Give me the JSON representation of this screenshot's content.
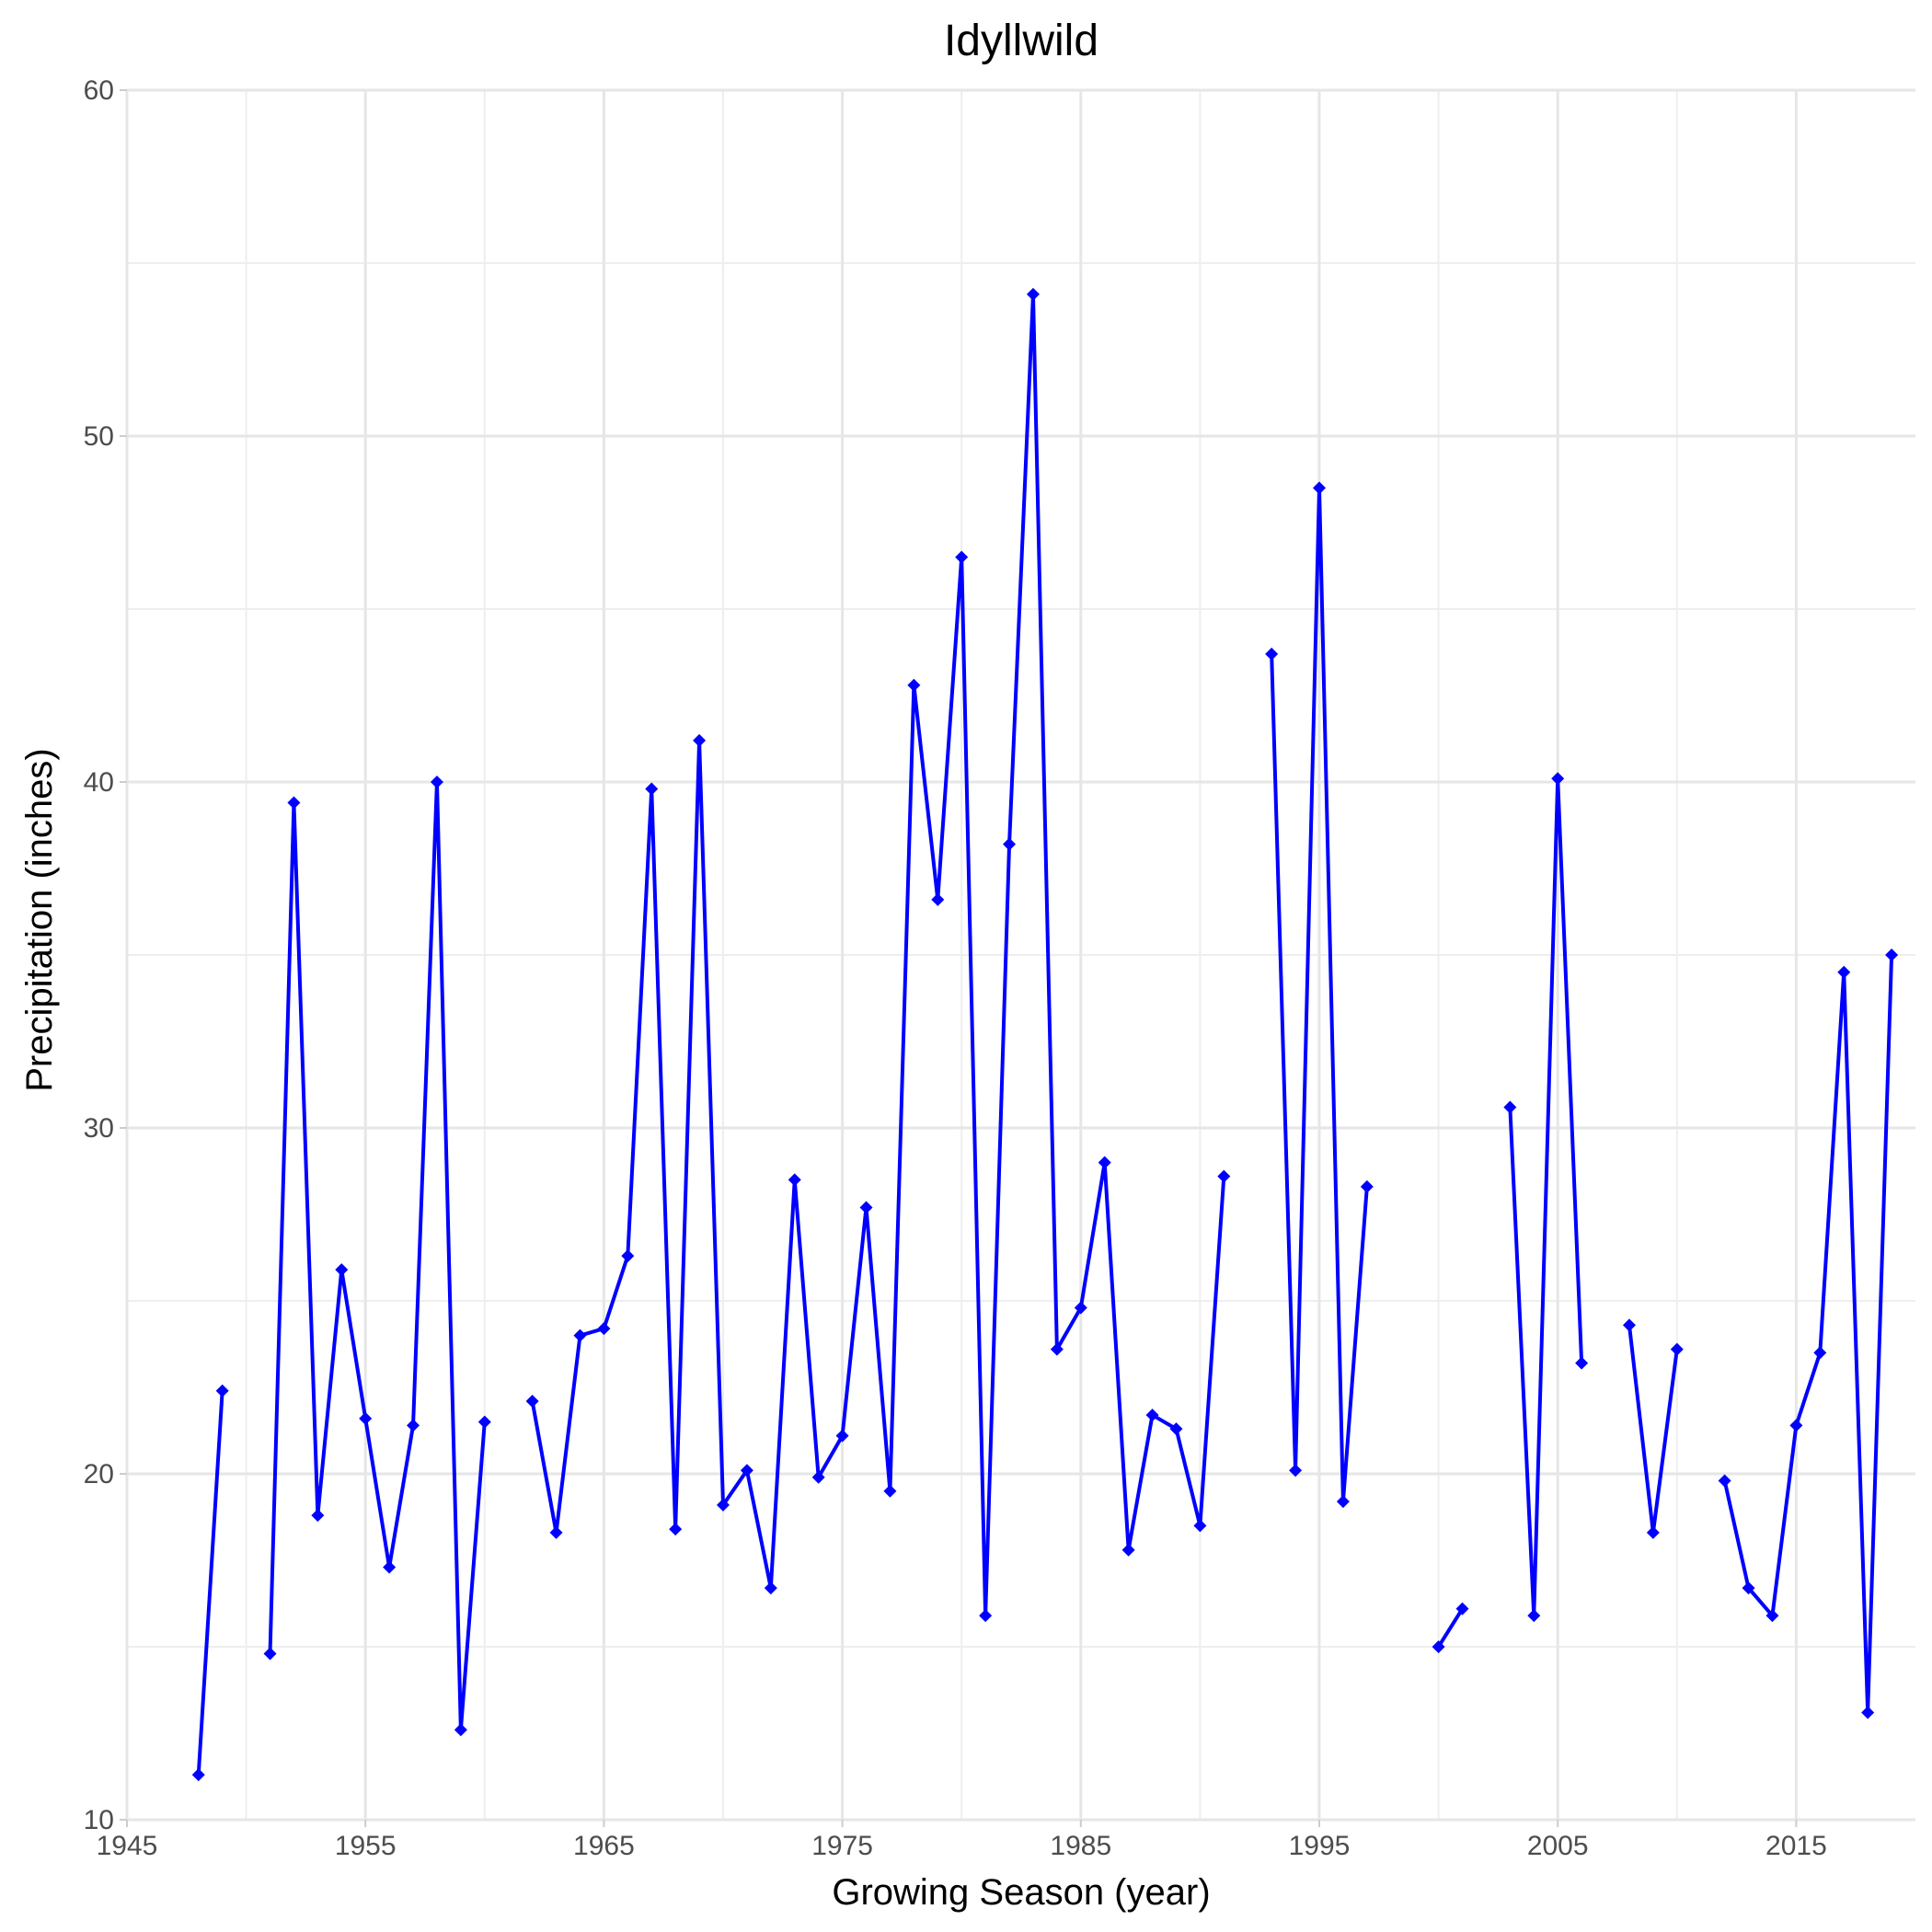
{
  "chart_data": {
    "type": "line",
    "title": "Idyllwild",
    "xlabel": "Growing Season (year)",
    "ylabel": "Precipitation (inches)",
    "xlim": [
      1945,
      2020
    ],
    "ylim": [
      10,
      60
    ],
    "x_ticks": [
      1945,
      1955,
      1965,
      1975,
      1985,
      1995,
      2005,
      2015
    ],
    "y_ticks": [
      10,
      20,
      30,
      40,
      50,
      60
    ],
    "grid": true,
    "line_color": "#0000ff",
    "marker": "diamond",
    "series": [
      {
        "x": [
          1948,
          1949,
          1950,
          1951,
          1952,
          1953,
          1954,
          1955,
          1956,
          1957,
          1958,
          1959,
          1960,
          1961,
          1962,
          1963,
          1964,
          1965,
          1966,
          1967,
          1968,
          1969,
          1970,
          1971,
          1972,
          1973,
          1974,
          1975,
          1976,
          1977,
          1978,
          1979,
          1980,
          1981,
          1982,
          1983,
          1984,
          1985,
          1986,
          1987,
          1988,
          1989,
          1990,
          1991,
          1992,
          1993,
          1994,
          1995,
          1996,
          1997,
          1998,
          1999,
          2000,
          2001,
          2002,
          2003,
          2004,
          2005,
          2006,
          2007,
          2008,
          2009,
          2010,
          2011,
          2012,
          2013,
          2014,
          2015,
          2016,
          2017,
          2018,
          2019
        ],
        "y": [
          11.3,
          22.4,
          null,
          14.8,
          39.4,
          18.8,
          25.9,
          21.6,
          17.3,
          21.4,
          40.0,
          12.6,
          21.5,
          null,
          22.1,
          18.3,
          24.0,
          24.2,
          26.3,
          39.8,
          18.4,
          41.2,
          19.1,
          20.1,
          16.7,
          28.5,
          19.9,
          21.1,
          27.7,
          19.5,
          42.8,
          36.6,
          46.5,
          15.9,
          38.2,
          54.1,
          23.6,
          24.8,
          29.0,
          17.8,
          21.7,
          21.3,
          18.5,
          28.6,
          null,
          43.7,
          20.1,
          48.5,
          19.2,
          28.3,
          null,
          null,
          15.0,
          16.1,
          null,
          30.6,
          15.9,
          40.1,
          23.2,
          null,
          24.3,
          18.3,
          23.6,
          null,
          19.8,
          16.7,
          15.9,
          21.4,
          23.5,
          34.5,
          13.1,
          35.0
        ]
      }
    ]
  }
}
